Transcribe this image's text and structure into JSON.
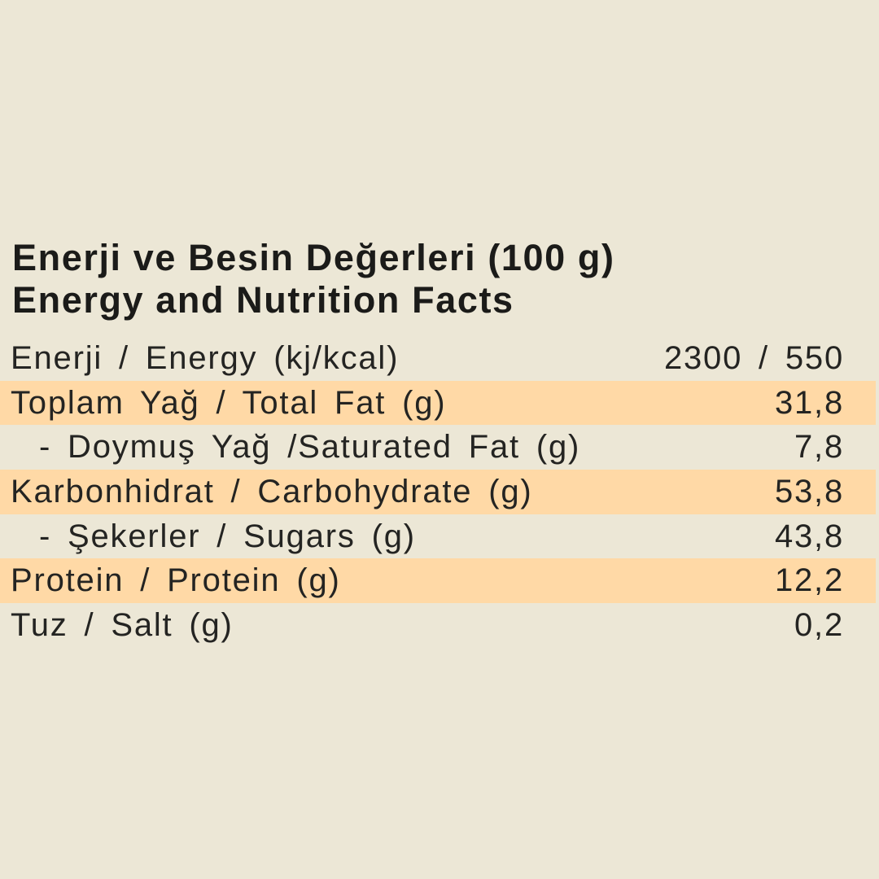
{
  "page": {
    "background_color": "#ECE7D6",
    "highlight_color": "#FFD9A6",
    "text_color": "#242422"
  },
  "header": {
    "title_line1": "Enerji ve Besin Değerleri (100 g)",
    "title_line2": "Energy and Nutrition Facts"
  },
  "table": {
    "rows": [
      {
        "label": "Enerji / Energy (kj/kcal)",
        "value": "2300 / 550",
        "highlighted": false,
        "indented": false
      },
      {
        "label": "Toplam Yağ / Total Fat (g)",
        "value": "31,8",
        "highlighted": true,
        "indented": false
      },
      {
        "label": "- Doymuş Yağ /Saturated Fat (g)",
        "value": "7,8",
        "highlighted": false,
        "indented": true
      },
      {
        "label": "Karbonhidrat / Carbohydrate (g)",
        "value": "53,8",
        "highlighted": true,
        "indented": false
      },
      {
        "label": "- Şekerler / Sugars (g)",
        "value": "43,8",
        "highlighted": false,
        "indented": true
      },
      {
        "label": "Protein / Protein (g)",
        "value": "12,2",
        "highlighted": true,
        "indented": false
      },
      {
        "label": "Tuz / Salt (g)",
        "value": "0,2",
        "highlighted": false,
        "indented": false
      }
    ]
  }
}
